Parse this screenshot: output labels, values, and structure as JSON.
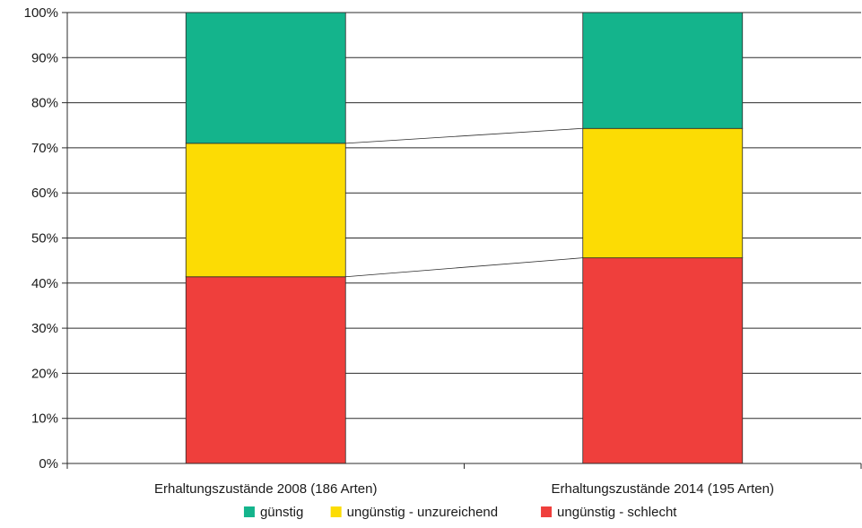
{
  "chart_data": {
    "type": "bar",
    "stacked": true,
    "percent": true,
    "categories": [
      "Erhaltungszustände 2008 (186 Arten)",
      "Erhaltungszustände 2014 (195 Arten)"
    ],
    "series": [
      {
        "name": "ungünstig - schlecht",
        "color": "#ef3f3c",
        "values": [
          41.4,
          45.6
        ]
      },
      {
        "name": "ungünstig - unzureichend",
        "color": "#fcdc04",
        "values": [
          29.6,
          28.7
        ]
      },
      {
        "name": "günstig",
        "color": "#14b48c",
        "values": [
          29.0,
          25.7
        ]
      }
    ],
    "legend_order": [
      "günstig",
      "ungünstig - unzureichend",
      "ungünstig - schlecht"
    ],
    "ylim": [
      0,
      100
    ],
    "yticks": [
      "0%",
      "10%",
      "20%",
      "30%",
      "40%",
      "50%",
      "60%",
      "70%",
      "80%",
      "90%",
      "100%"
    ],
    "grid": true,
    "connector_lines": true,
    "legend_position": "bottom"
  }
}
